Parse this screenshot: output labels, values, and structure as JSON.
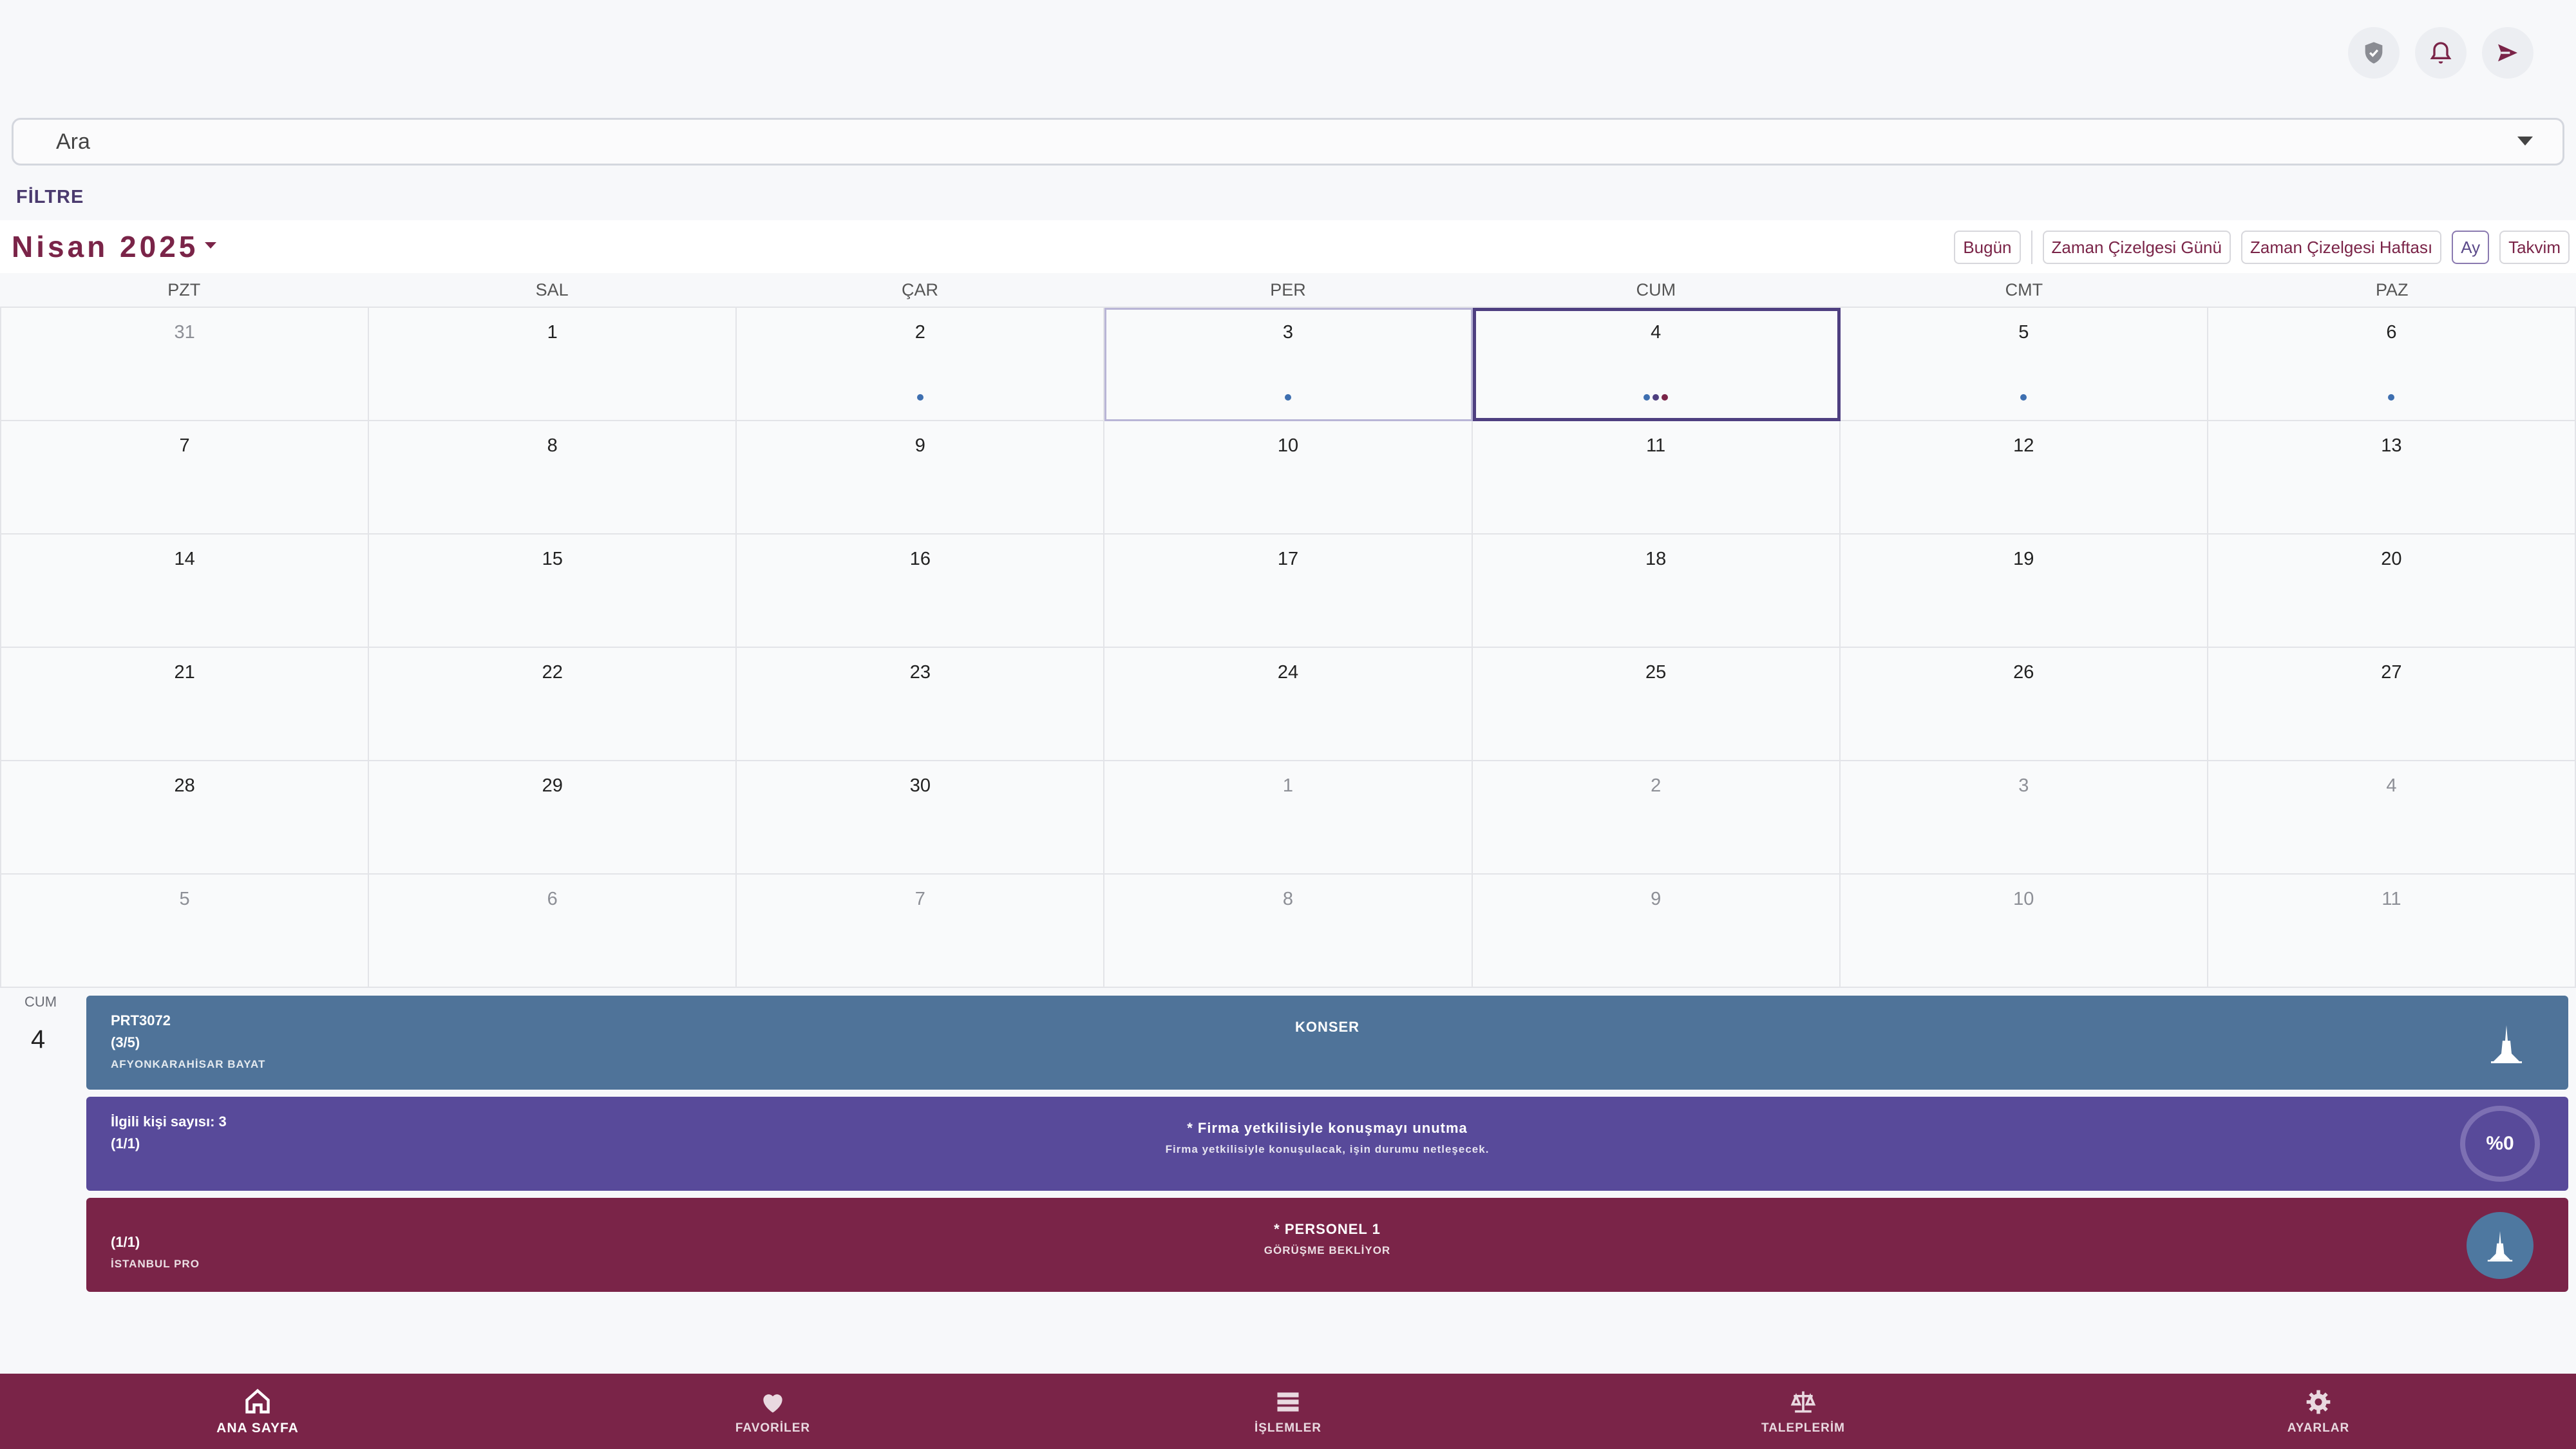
{
  "header": {
    "icons": [
      "shield-icon",
      "bell-icon",
      "send-icon"
    ]
  },
  "search": {
    "placeholder": "Ara"
  },
  "filter_label": "FİLTRE",
  "calendar": {
    "month_title": "Nisan 2025",
    "view_buttons": [
      "Bugün",
      "Zaman Çizelgesi Günü",
      "Zaman Çizelgesi Haftası",
      "Ay",
      "Takvim"
    ],
    "active_view": "Ay",
    "weekdays": [
      "PZT",
      "SAL",
      "ÇAR",
      "PER",
      "CUM",
      "CMT",
      "PAZ"
    ],
    "weeks": [
      [
        {
          "d": "31",
          "o": true
        },
        {
          "d": "1"
        },
        {
          "d": "2",
          "dots": [
            "#3e6fb0"
          ]
        },
        {
          "d": "3",
          "dots": [
            "#3e6fb0"
          ],
          "today": true
        },
        {
          "d": "4",
          "dots": [
            "#3e6fb0",
            "#4e3f80",
            "#7a2448"
          ],
          "selected": true
        },
        {
          "d": "5",
          "dots": [
            "#3e6fb0"
          ]
        },
        {
          "d": "6",
          "dots": [
            "#3e6fb0"
          ]
        }
      ],
      [
        {
          "d": "7"
        },
        {
          "d": "8"
        },
        {
          "d": "9"
        },
        {
          "d": "10"
        },
        {
          "d": "11"
        },
        {
          "d": "12"
        },
        {
          "d": "13"
        }
      ],
      [
        {
          "d": "14"
        },
        {
          "d": "15"
        },
        {
          "d": "16"
        },
        {
          "d": "17"
        },
        {
          "d": "18"
        },
        {
          "d": "19"
        },
        {
          "d": "20"
        }
      ],
      [
        {
          "d": "21"
        },
        {
          "d": "22"
        },
        {
          "d": "23"
        },
        {
          "d": "24"
        },
        {
          "d": "25"
        },
        {
          "d": "26"
        },
        {
          "d": "27"
        }
      ],
      [
        {
          "d": "28"
        },
        {
          "d": "29"
        },
        {
          "d": "30"
        },
        {
          "d": "1",
          "o": true
        },
        {
          "d": "2",
          "o": true
        },
        {
          "d": "3",
          "o": true
        },
        {
          "d": "4",
          "o": true
        }
      ],
      [
        {
          "d": "5",
          "o": true
        },
        {
          "d": "6",
          "o": true
        },
        {
          "d": "7",
          "o": true
        },
        {
          "d": "8",
          "o": true
        },
        {
          "d": "9",
          "o": true
        },
        {
          "d": "10",
          "o": true
        },
        {
          "d": "11",
          "o": true
        }
      ]
    ]
  },
  "agenda": {
    "day_name": "CUM",
    "day_number": "4",
    "events": [
      {
        "color": "#4f7399",
        "left_line1": "PRT3072",
        "left_line2": "(3/5)",
        "left_line3": "AFYONKARAHİSAR BAYAT",
        "title": "KONSER",
        "subtitle": "",
        "right": "tower-icon"
      },
      {
        "color": "#584a9a",
        "left_line1": "İlgili kişi sayısı: 3",
        "left_line2": "(1/1)",
        "left_line3": "",
        "title": "* Firma yetkilisiyle konuşmayı unutma",
        "subtitle": "Firma yetkilisiyle konuşulacak, işin durumu netleşecek.",
        "progress": "%0"
      },
      {
        "color": "#7a2448",
        "left_line1": "",
        "left_line2": "(1/1)",
        "left_line3": "İSTANBUL PRO",
        "title": "* PERSONEL 1",
        "subtitle": "GÖRÜŞME BEKLİYOR",
        "right": "tower-avatar-icon"
      }
    ]
  },
  "bottom_nav": [
    {
      "label": "ANA SAYFA",
      "icon": "home-icon",
      "active": true
    },
    {
      "label": "FAVORİLER",
      "icon": "heart-icon"
    },
    {
      "label": "İŞLEMLER",
      "icon": "list-icon"
    },
    {
      "label": "TALEPLERİM",
      "icon": "scale-icon"
    },
    {
      "label": "AYARLAR",
      "icon": "gear-icon"
    }
  ]
}
